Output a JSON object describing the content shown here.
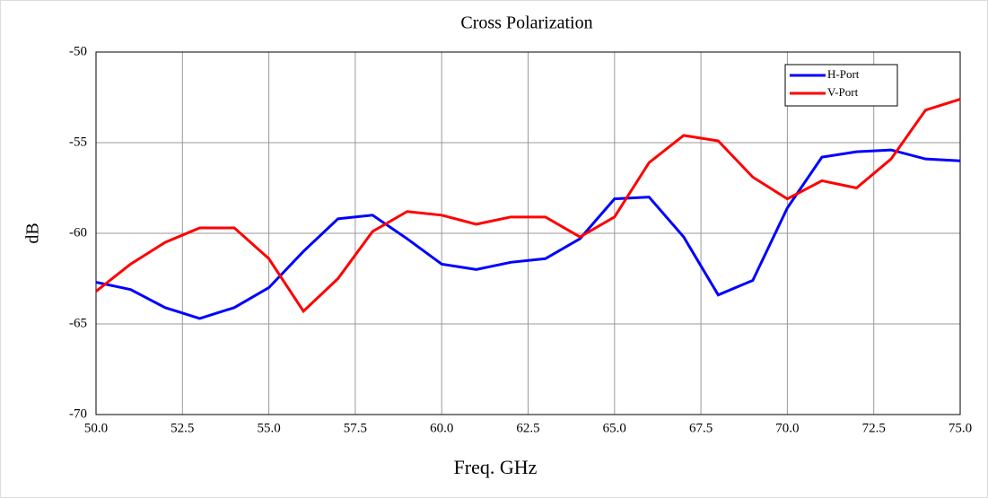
{
  "chart_data": {
    "type": "line",
    "title": "Cross Polarization",
    "xlabel": "Freq. GHz",
    "ylabel": "dB",
    "x": [
      50,
      51,
      52,
      53,
      54,
      55,
      56,
      57,
      58,
      59,
      60,
      61,
      62,
      63,
      64,
      65,
      66,
      67,
      68,
      69,
      70,
      71,
      72,
      73,
      74,
      75
    ],
    "series": [
      {
        "name": "H-Port",
        "color": "#0000ff",
        "values": [
          -62.7,
          -63.1,
          -64.1,
          -64.7,
          -64.1,
          -63.0,
          -61.0,
          -59.2,
          -59.0,
          -60.3,
          -61.7,
          -62.0,
          -61.6,
          -61.4,
          -60.3,
          -58.1,
          -58.0,
          -60.2,
          -63.4,
          -62.6,
          -58.6,
          -55.8,
          -55.5,
          -55.4,
          -55.9,
          -56.0
        ]
      },
      {
        "name": "V-Port",
        "color": "#ff0000",
        "values": [
          -63.2,
          -61.7,
          -60.5,
          -59.7,
          -59.7,
          -61.4,
          -64.3,
          -62.5,
          -59.9,
          -58.8,
          -59.0,
          -59.5,
          -59.1,
          -59.1,
          -60.2,
          -59.1,
          -56.1,
          -54.6,
          -54.9,
          -56.9,
          -58.1,
          -57.1,
          -57.5,
          -55.9,
          -53.2,
          -52.6
        ]
      }
    ],
    "xlim": [
      50,
      75
    ],
    "xticks": [
      {
        "value": 50,
        "label": "50.0"
      },
      {
        "value": 52.5,
        "label": "52.5"
      },
      {
        "value": 55,
        "label": "55.0"
      },
      {
        "value": 57.5,
        "label": "57.5"
      },
      {
        "value": 60,
        "label": "60.0"
      },
      {
        "value": 62.5,
        "label": "62.5"
      },
      {
        "value": 65,
        "label": "65.0"
      },
      {
        "value": 67.5,
        "label": "67.5"
      },
      {
        "value": 70,
        "label": "70.0"
      },
      {
        "value": 72.5,
        "label": "72.5"
      },
      {
        "value": 75,
        "label": "75.0"
      }
    ],
    "ylim": [
      -70,
      -50
    ],
    "yticks": [
      -70,
      -65,
      -60,
      -55,
      -50
    ],
    "grid": true,
    "legend": "upper right"
  }
}
